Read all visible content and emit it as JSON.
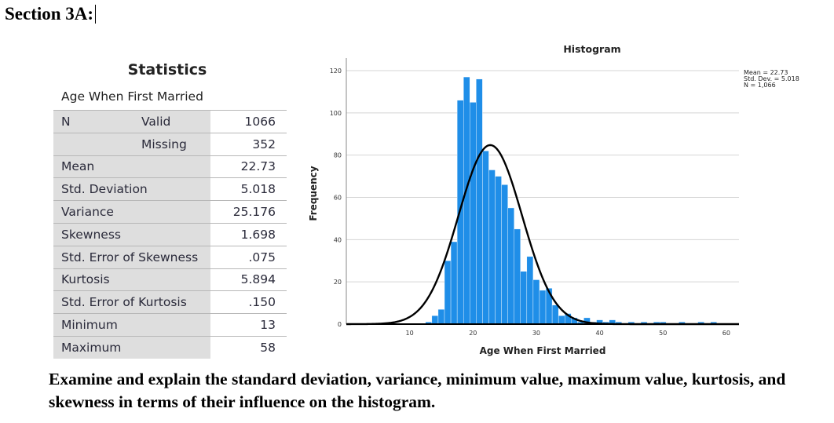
{
  "section_title": "Section 3A:",
  "statistics": {
    "title": "Statistics",
    "variable": "Age When First Married",
    "rows": [
      {
        "label": "N",
        "sublabel": "Valid",
        "value": "1066"
      },
      {
        "label": "",
        "sublabel": "Missing",
        "value": "352"
      },
      {
        "label": "Mean",
        "value": "22.73"
      },
      {
        "label": "Std. Deviation",
        "value": "5.018"
      },
      {
        "label": "Variance",
        "value": "25.176"
      },
      {
        "label": "Skewness",
        "value": "1.698"
      },
      {
        "label": "Std. Error of Skewness",
        "value": ".075"
      },
      {
        "label": "Kurtosis",
        "value": "5.894"
      },
      {
        "label": "Std. Error of Kurtosis",
        "value": ".150"
      },
      {
        "label": "Minimum",
        "value": "13"
      },
      {
        "label": "Maximum",
        "value": "58"
      }
    ]
  },
  "chart_data": {
    "type": "bar",
    "title": "Histogram",
    "xlabel": "Age When First Married",
    "ylabel": "Frequency",
    "xlim": [
      0,
      62
    ],
    "ylim": [
      0,
      120
    ],
    "x_ticks": [
      "10",
      "20",
      "30",
      "40",
      "50",
      "60"
    ],
    "y_ticks": [
      "0",
      "20",
      "40",
      "60",
      "80",
      "100",
      "120"
    ],
    "bins": [
      {
        "x": 13,
        "count": 1
      },
      {
        "x": 14,
        "count": 4
      },
      {
        "x": 15,
        "count": 7
      },
      {
        "x": 16,
        "count": 30
      },
      {
        "x": 17,
        "count": 39
      },
      {
        "x": 18,
        "count": 106
      },
      {
        "x": 19,
        "count": 117
      },
      {
        "x": 20,
        "count": 105
      },
      {
        "x": 21,
        "count": 116
      },
      {
        "x": 22,
        "count": 82
      },
      {
        "x": 23,
        "count": 73
      },
      {
        "x": 24,
        "count": 70
      },
      {
        "x": 25,
        "count": 66
      },
      {
        "x": 26,
        "count": 55
      },
      {
        "x": 27,
        "count": 45
      },
      {
        "x": 28,
        "count": 25
      },
      {
        "x": 29,
        "count": 32
      },
      {
        "x": 30,
        "count": 21
      },
      {
        "x": 31,
        "count": 16
      },
      {
        "x": 32,
        "count": 17
      },
      {
        "x": 33,
        "count": 9
      },
      {
        "x": 34,
        "count": 4
      },
      {
        "x": 35,
        "count": 5
      },
      {
        "x": 36,
        "count": 3
      },
      {
        "x": 37,
        "count": 1
      },
      {
        "x": 38,
        "count": 3
      },
      {
        "x": 39,
        "count": 1
      },
      {
        "x": 40,
        "count": 2
      },
      {
        "x": 41,
        "count": 1
      },
      {
        "x": 42,
        "count": 2
      },
      {
        "x": 43,
        "count": 1
      },
      {
        "x": 45,
        "count": 1
      },
      {
        "x": 47,
        "count": 1
      },
      {
        "x": 49,
        "count": 1
      },
      {
        "x": 50,
        "count": 1
      },
      {
        "x": 53,
        "count": 1
      },
      {
        "x": 56,
        "count": 1
      },
      {
        "x": 58,
        "count": 1
      }
    ],
    "normal_curve": {
      "mean": 22.73,
      "sd": 5.018,
      "n": 1066
    },
    "legend": {
      "placement": "top-right",
      "lines": [
        "Mean = 22.73",
        "Std. Dev. = 5.018",
        "N = 1,066"
      ]
    },
    "bar_color": "#1f8ee8",
    "grid": true
  },
  "question": "Examine and explain the standard deviation, variance, minimum value, maximum value, kurtosis, and skewness in terms of their influence on the histogram."
}
